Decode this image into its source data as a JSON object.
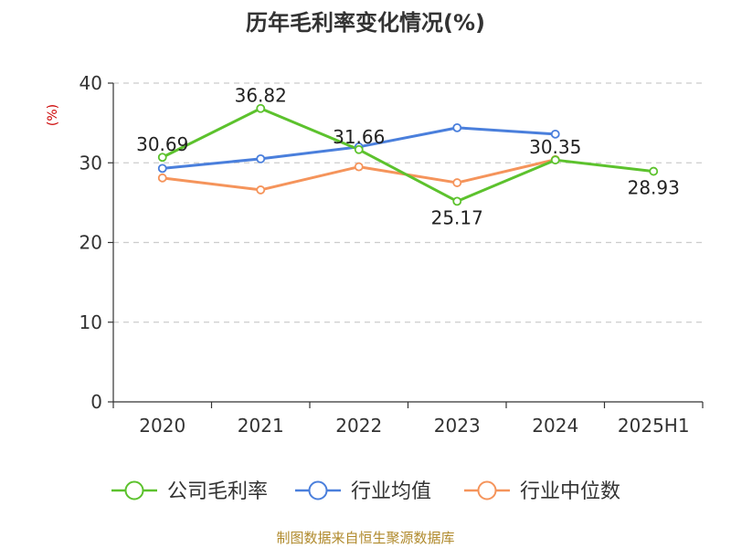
{
  "chart_data": {
    "type": "line",
    "title": "历年毛利率变化情况(%)",
    "ylabel": "(%)",
    "categories": [
      "2020",
      "2021",
      "2022",
      "2023",
      "2024",
      "2025H1"
    ],
    "ylim": [
      0,
      40
    ],
    "yticks": [
      0,
      10,
      20,
      30,
      40
    ],
    "grid": true,
    "legend_position": "bottom",
    "series": [
      {
        "name": "公司毛利率",
        "color": "#5cc22d",
        "values": [
          30.69,
          36.82,
          31.66,
          25.17,
          30.35,
          28.93
        ],
        "labels": [
          "30.69",
          "36.82",
          "31.66",
          "25.17",
          "30.35",
          "28.93"
        ]
      },
      {
        "name": "行业均值",
        "color": "#4a7fdc",
        "values": [
          29.3,
          30.5,
          32.0,
          34.4,
          33.6,
          null
        ]
      },
      {
        "name": "行业中位数",
        "color": "#f5945b",
        "values": [
          28.1,
          26.6,
          29.5,
          27.5,
          30.4,
          null
        ]
      }
    ]
  },
  "source": "制图数据来自恒生聚源数据库"
}
